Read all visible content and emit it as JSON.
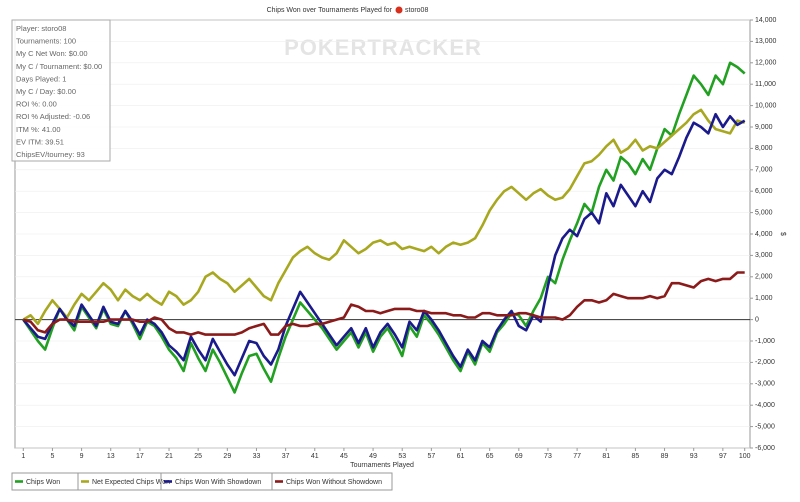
{
  "chart_data": {
    "type": "line",
    "title": "Chips Won over Tournaments Played for",
    "player_name": "storo08",
    "watermark": "POKERTRACKER",
    "stats": [
      "Player: storo08",
      "Tournaments: 100",
      "My C Net Won: $0.00",
      "My C / Tournament: $0.00",
      "Days Played: 1",
      "My C / Day: $0.00",
      "ROI %: 0.00",
      "ROI % Adjusted: -0.06",
      "ITM %: 41.00",
      "EV ITM: 39.51",
      "ChipsEV/tourney: 93"
    ],
    "x_label": "Tournaments Played",
    "y_label": "$",
    "x": [
      1,
      2,
      3,
      4,
      5,
      6,
      7,
      8,
      9,
      10,
      11,
      12,
      13,
      14,
      15,
      16,
      17,
      18,
      19,
      20,
      21,
      22,
      23,
      24,
      25,
      26,
      27,
      28,
      29,
      30,
      31,
      32,
      33,
      34,
      35,
      36,
      37,
      38,
      39,
      40,
      41,
      42,
      43,
      44,
      45,
      46,
      47,
      48,
      49,
      50,
      51,
      52,
      53,
      54,
      55,
      56,
      57,
      58,
      59,
      60,
      61,
      62,
      63,
      64,
      65,
      66,
      67,
      68,
      69,
      70,
      71,
      72,
      73,
      74,
      75,
      76,
      77,
      78,
      79,
      80,
      81,
      82,
      83,
      84,
      85,
      86,
      87,
      88,
      89,
      90,
      91,
      92,
      93,
      94,
      95,
      96,
      97,
      98,
      99,
      100
    ],
    "xlim": [
      0,
      101
    ],
    "xticks": [
      1,
      5,
      9,
      13,
      17,
      21,
      25,
      29,
      33,
      37,
      41,
      45,
      49,
      53,
      57,
      61,
      65,
      69,
      73,
      77,
      81,
      85,
      89,
      93,
      97,
      100
    ],
    "ylim": [
      -6000,
      14000
    ],
    "yticks": [
      {
        "value": -6000,
        "label": "-6,000"
      },
      {
        "value": -5000,
        "label": "-5,000"
      },
      {
        "value": -4000,
        "label": "-4,000"
      },
      {
        "value": -3000,
        "label": "-3,000"
      },
      {
        "value": -2000,
        "label": "-2,000"
      },
      {
        "value": -1000,
        "label": "-1,000"
      },
      0,
      {
        "value": 1000,
        "label": "1,000"
      },
      {
        "value": 2000,
        "label": "2,000"
      },
      {
        "value": 3000,
        "label": "3,000"
      },
      {
        "value": 4000,
        "label": "4,000"
      },
      {
        "value": 5000,
        "label": "5,000"
      },
      {
        "value": 6000,
        "label": "6,000"
      },
      {
        "value": 7000,
        "label": "7,000"
      },
      {
        "value": 8000,
        "label": "8,000"
      },
      {
        "value": 9000,
        "label": "9,000"
      },
      {
        "value": 10000,
        "label": "10,000"
      },
      {
        "value": 11000,
        "label": "11,000"
      },
      {
        "value": 12000,
        "label": "12,000"
      },
      {
        "value": 13000,
        "label": "13,000"
      },
      {
        "value": 14000,
        "label": "14,000"
      }
    ],
    "grid": true,
    "legend": "bottom",
    "series": [
      {
        "name": "Chips Won",
        "color": "#22a022",
        "values": [
          0,
          -500,
          -1000,
          -1400,
          -400,
          500,
          0,
          -500,
          600,
          100,
          -400,
          500,
          -200,
          -300,
          400,
          -200,
          -900,
          -100,
          -300,
          -800,
          -1400,
          -1800,
          -2400,
          -1100,
          -1800,
          -2400,
          -1400,
          -2000,
          -2700,
          -3400,
          -2500,
          -1700,
          -1600,
          -2300,
          -2900,
          -1800,
          -800,
          0,
          800,
          400,
          0,
          -400,
          -900,
          -1400,
          -1000,
          -600,
          -1300,
          -600,
          -1500,
          -800,
          -400,
          -1000,
          -1700,
          -300,
          -800,
          200,
          -200,
          -700,
          -1300,
          -1900,
          -2400,
          -1500,
          -2100,
          -1100,
          -1500,
          -600,
          -200,
          300,
          200,
          -300,
          400,
          1000,
          2000,
          1700,
          2800,
          3700,
          4500,
          5400,
          5000,
          6200,
          7000,
          6500,
          7600,
          7300,
          6800,
          7500,
          7000,
          8000,
          8900,
          8600,
          9600,
          10500,
          11400,
          11000,
          10500,
          11400,
          11000,
          12000,
          11800,
          11500
        ]
      },
      {
        "name": "Net Expected Chips Won",
        "color": "#a8a820",
        "values": [
          0,
          200,
          -200,
          400,
          900,
          500,
          100,
          700,
          1200,
          900,
          1300,
          1700,
          1400,
          900,
          1400,
          1100,
          900,
          1200,
          900,
          700,
          1300,
          1100,
          700,
          900,
          1300,
          2000,
          2200,
          1900,
          1700,
          1300,
          1600,
          1900,
          1500,
          1100,
          900,
          1700,
          2300,
          2900,
          3200,
          3400,
          3100,
          2900,
          2800,
          3100,
          3700,
          3400,
          3100,
          3300,
          3600,
          3700,
          3500,
          3600,
          3300,
          3400,
          3300,
          3200,
          3400,
          3100,
          3400,
          3600,
          3500,
          3600,
          3800,
          4400,
          5100,
          5600,
          6000,
          6200,
          5900,
          5600,
          5900,
          6100,
          5800,
          5600,
          5700,
          6100,
          6700,
          7300,
          7400,
          7700,
          8100,
          8400,
          7800,
          8000,
          8400,
          7900,
          8100,
          8000,
          8300,
          8600,
          8900,
          9200,
          9600,
          9800,
          9300,
          8900,
          8800,
          8700,
          9300,
          9200
        ]
      },
      {
        "name": "Chips Won With Showdown",
        "color": "#1a1a8c",
        "values": [
          0,
          -400,
          -800,
          -900,
          -200,
          500,
          0,
          -300,
          700,
          200,
          -300,
          600,
          -100,
          -200,
          400,
          -100,
          -700,
          0,
          -200,
          -600,
          -1200,
          -1500,
          -1900,
          -800,
          -1400,
          -1900,
          -900,
          -1500,
          -2100,
          -2600,
          -1800,
          -1000,
          -1100,
          -1700,
          -2100,
          -1400,
          -300,
          500,
          1300,
          800,
          300,
          -200,
          -700,
          -1200,
          -800,
          -400,
          -1100,
          -400,
          -1300,
          -600,
          -200,
          -700,
          -1300,
          -100,
          -500,
          400,
          0,
          -500,
          -1100,
          -1700,
          -2200,
          -1400,
          -1900,
          -1000,
          -1300,
          -500,
          0,
          400,
          -300,
          -500,
          200,
          -100,
          1600,
          3000,
          3800,
          4200,
          3900,
          4700,
          5000,
          4500,
          5900,
          5300,
          6300,
          5800,
          5300,
          6000,
          5500,
          6600,
          7000,
          6800,
          7600,
          8500,
          9200,
          9000,
          8700,
          9600,
          9000,
          9500,
          9100,
          9300
        ]
      },
      {
        "name": "Chips Won Without Showdown",
        "color": "#8b1a1a",
        "values": [
          0,
          -100,
          -500,
          -600,
          -200,
          0,
          0,
          -100,
          -100,
          -100,
          -100,
          -100,
          0,
          0,
          0,
          0,
          -100,
          -100,
          100,
          0,
          -400,
          -600,
          -600,
          -700,
          -600,
          -700,
          -700,
          -700,
          -700,
          -700,
          -600,
          -400,
          -300,
          -200,
          -700,
          -700,
          -300,
          -200,
          -300,
          -300,
          -200,
          -200,
          -100,
          0,
          100,
          700,
          600,
          400,
          400,
          300,
          400,
          500,
          500,
          500,
          400,
          400,
          300,
          300,
          300,
          200,
          200,
          100,
          100,
          300,
          300,
          200,
          200,
          200,
          300,
          300,
          200,
          100,
          100,
          100,
          0,
          200,
          600,
          900,
          900,
          800,
          900,
          1200,
          1100,
          1000,
          1000,
          1000,
          1100,
          1000,
          1100,
          1700,
          1700,
          1600,
          1500,
          1800,
          1900,
          1800,
          1900,
          1900,
          2200,
          2200
        ]
      }
    ]
  }
}
